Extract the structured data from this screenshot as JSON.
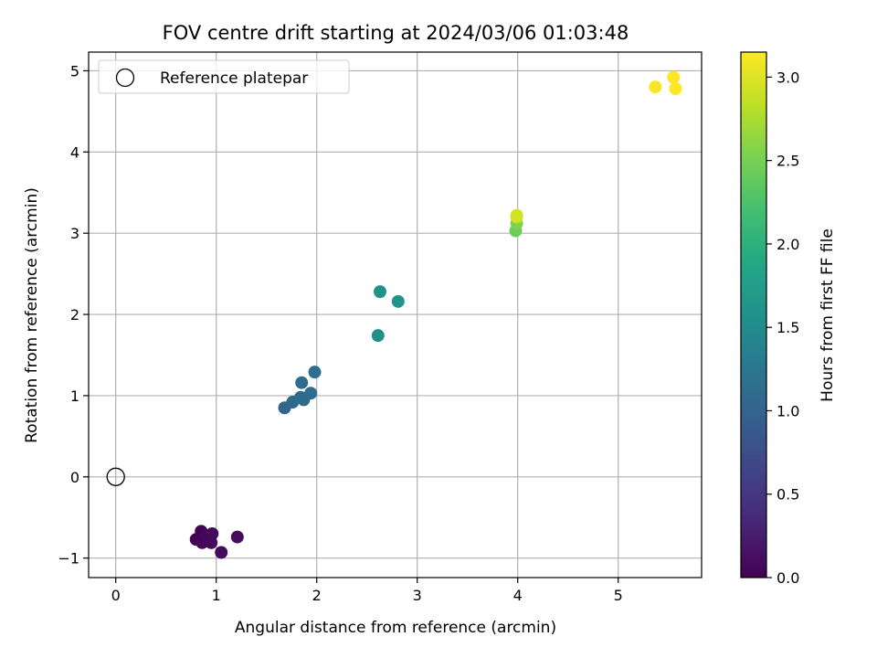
{
  "chart_data": {
    "type": "scatter",
    "title": "FOV centre drift starting at 2024/03/06 01:03:48",
    "xlabel": "Angular distance from reference (arcmin)",
    "ylabel": "Rotation from reference (arcmin)",
    "xlim": [
      -0.27,
      5.83
    ],
    "ylim": [
      -1.24,
      5.23
    ],
    "xticks": [
      0,
      1,
      2,
      3,
      4,
      5
    ],
    "yticks": [
      -1,
      0,
      1,
      2,
      3,
      4,
      5
    ],
    "grid": true,
    "legend": {
      "placement": "top-left",
      "entries": [
        "Reference platepar"
      ]
    },
    "colorbar": {
      "label": "Hours from first FF file",
      "range": [
        0.0,
        3.15
      ],
      "ticks": [
        "0.0",
        "0.5",
        "1.0",
        "1.5",
        "2.0",
        "2.5",
        "3.0"
      ],
      "colormap": "viridis"
    },
    "reference": {
      "x": 0,
      "y": 0,
      "name": "Reference platepar"
    },
    "points": [
      {
        "x": 0.8,
        "y": -0.77,
        "t": 0.0
      },
      {
        "x": 0.85,
        "y": -0.67,
        "t": 0.02
      },
      {
        "x": 0.86,
        "y": -0.81,
        "t": 0.04
      },
      {
        "x": 0.89,
        "y": -0.72,
        "t": 0.05
      },
      {
        "x": 0.92,
        "y": -0.76,
        "t": 0.06
      },
      {
        "x": 0.95,
        "y": -0.81,
        "t": 0.07
      },
      {
        "x": 0.96,
        "y": -0.7,
        "t": 0.08
      },
      {
        "x": 1.05,
        "y": -0.93,
        "t": 0.09
      },
      {
        "x": 1.21,
        "y": -0.74,
        "t": 0.1
      },
      {
        "x": 1.68,
        "y": 0.85,
        "t": 1.05
      },
      {
        "x": 1.76,
        "y": 0.92,
        "t": 1.07
      },
      {
        "x": 1.84,
        "y": 0.98,
        "t": 1.09
      },
      {
        "x": 1.87,
        "y": 0.95,
        "t": 1.1
      },
      {
        "x": 1.94,
        "y": 1.03,
        "t": 1.11
      },
      {
        "x": 1.85,
        "y": 1.16,
        "t": 1.12
      },
      {
        "x": 1.98,
        "y": 1.29,
        "t": 1.14
      },
      {
        "x": 2.61,
        "y": 1.74,
        "t": 1.55
      },
      {
        "x": 2.63,
        "y": 2.28,
        "t": 1.57
      },
      {
        "x": 2.81,
        "y": 2.16,
        "t": 1.6
      },
      {
        "x": 3.98,
        "y": 3.03,
        "t": 2.45
      },
      {
        "x": 3.99,
        "y": 3.12,
        "t": 2.55
      },
      {
        "x": 3.99,
        "y": 3.2,
        "t": 2.9
      },
      {
        "x": 3.99,
        "y": 3.22,
        "t": 2.95
      },
      {
        "x": 5.37,
        "y": 4.8,
        "t": 3.12
      },
      {
        "x": 5.55,
        "y": 4.92,
        "t": 3.14
      },
      {
        "x": 5.57,
        "y": 4.78,
        "t": 3.15
      }
    ]
  }
}
